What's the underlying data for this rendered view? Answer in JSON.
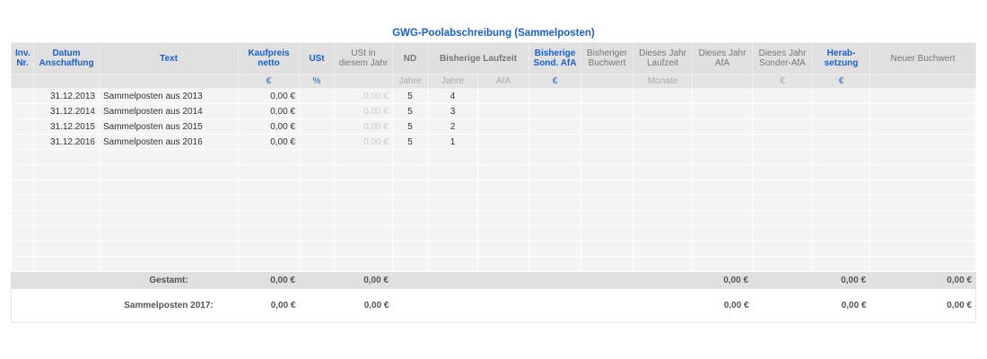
{
  "title": "GWG-Poolabschreibung (Sammelposten)",
  "headers": [
    "Inv. Nr.",
    "Datum Anschaffung",
    "Text",
    "Kaufpreis netto",
    "USt",
    "USt in diesem Jahr",
    "ND",
    "Bisherige Laufzeit",
    "Bisherige Sond. AfA",
    "Bisheriger Buchwert",
    "Dieses Jahr Laufzeit",
    "Dieses Jahr AfA",
    "Dieses Jahr Sonder-AfA",
    "Herab-setzung",
    "Neuer Buchwert"
  ],
  "units": {
    "kaufpreis": "€",
    "ust": "%",
    "nd": "Jahre",
    "laufzeit_jahre": "Jahre",
    "laufzeit_afa": "AfA",
    "sond_afa": "€",
    "dj_laufzeit": "Monate",
    "dj_sonder": "€",
    "herab": "€"
  },
  "rows": [
    {
      "datum": "31.12.2013",
      "text": "Sammelposten aus 2013",
      "kaufpreis": "0,00 €",
      "ust_jahr": "0,00 €",
      "nd": "5",
      "laufzeit": "4"
    },
    {
      "datum": "31.12.2014",
      "text": "Sammelposten aus 2014",
      "kaufpreis": "0,00 €",
      "ust_jahr": "0,00 €",
      "nd": "5",
      "laufzeit": "3"
    },
    {
      "datum": "31.12.2015",
      "text": "Sammelposten aus 2015",
      "kaufpreis": "0,00 €",
      "ust_jahr": "0,00 €",
      "nd": "5",
      "laufzeit": "2"
    },
    {
      "datum": "31.12.2016",
      "text": "Sammelposten aus 2016",
      "kaufpreis": "0,00 €",
      "ust_jahr": "0,00 €",
      "nd": "5",
      "laufzeit": "1"
    }
  ],
  "total": {
    "label": "Gestamt:",
    "kaufpreis": "0,00 €",
    "ust_jahr": "0,00 €",
    "dj_afa": "0,00 €",
    "herab": "0,00 €",
    "neuer": "0,00 €"
  },
  "sammel": {
    "label": "Sammelposten 2017:",
    "kaufpreis": "0,00 €",
    "ust_jahr": "0,00 €",
    "dj_afa": "0,00 €",
    "herab": "0,00 €",
    "neuer": "0,00 €"
  }
}
